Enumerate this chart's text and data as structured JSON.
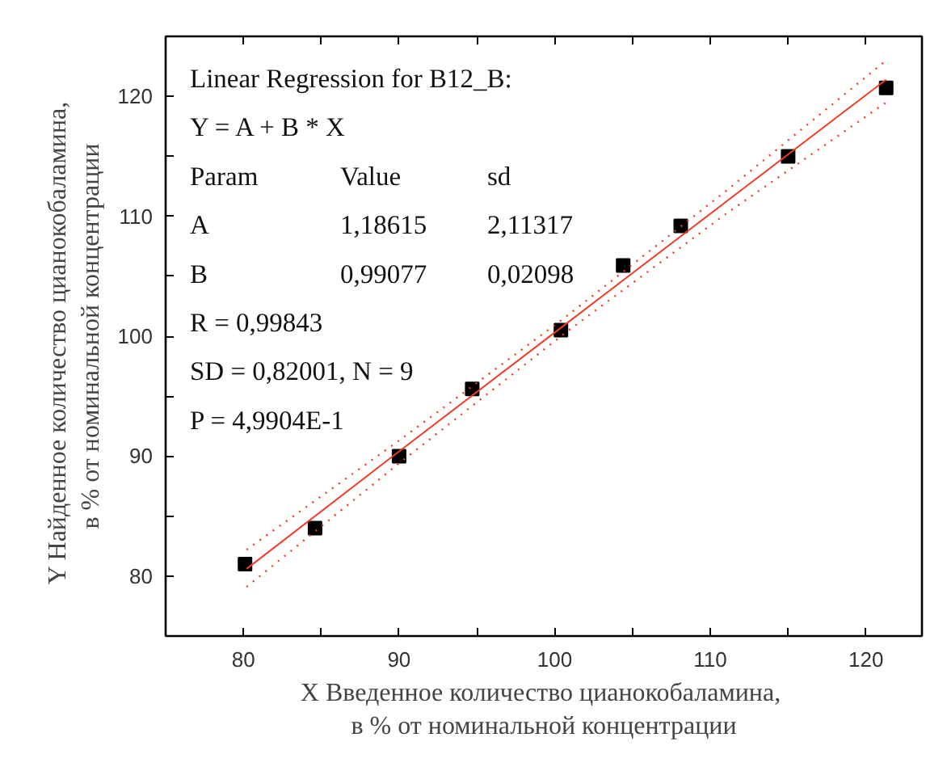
{
  "chart_data": {
    "type": "scatter",
    "xlabel": "X Введенное количество  цианокобаламина,\nв % от номинальной концентрации",
    "ylabel": "Y Найденное  количество  цианокобаламина,\nв % от номинальной концентрации",
    "x": [
      80.1,
      84.6,
      90.0,
      94.7,
      100.4,
      104.4,
      108.1,
      115.0,
      121.3
    ],
    "series": [
      {
        "color": "#000000",
        "marker": "square",
        "values": [
          81.0,
          84.0,
          90.0,
          95.6,
          100.5,
          105.9,
          109.2,
          115.0,
          120.7
        ]
      },
      {
        "type": "line",
        "color": "#f03c28",
        "line_style": "solid",
        "x": [
          80.2,
          90,
          100.6,
          111,
          121.3
        ],
        "values": [
          80.6,
          90.4,
          100.9,
          111.2,
          121.4
        ]
      },
      {
        "type": "line",
        "color": "#f03c28",
        "line_style": "dotted",
        "x": [
          80.2,
          90,
          100.6,
          111,
          121.3
        ],
        "values": [
          79.1,
          89.4,
          100.2,
          110.2,
          119.5
        ]
      },
      {
        "type": "line",
        "color": "#f03c28",
        "line_style": "dotted",
        "x": [
          80.2,
          90,
          100.6,
          111,
          121.3
        ],
        "values": [
          82.2,
          91.3,
          101.5,
          112.1,
          123.0
        ]
      }
    ],
    "annotations": [
      "Linear Regression for B12_B:",
      "Y = A + B * X",
      "Param  Value  sd",
      "A  1,18615  2,11317",
      "B  0,99077  0,02098",
      "R  = 0,99843",
      "SD = 0,82001, N = 9",
      "P = 4,9904E-1"
    ],
    "xlim": [
      75,
      123.6
    ],
    "ylim": [
      75,
      125
    ],
    "xticks": [
      80,
      {
        "value": 85,
        "label": null
      },
      90,
      {
        "value": 95,
        "label": null
      },
      100,
      {
        "value": 105,
        "label": null
      },
      110,
      {
        "value": 115,
        "label": null
      },
      120
    ],
    "yticks": [
      80,
      {
        "value": 85,
        "label": null
      },
      90,
      {
        "value": 95,
        "label": null
      },
      100,
      {
        "value": 105,
        "label": null
      },
      110,
      {
        "value": 115,
        "label": null
      },
      120
    ]
  }
}
